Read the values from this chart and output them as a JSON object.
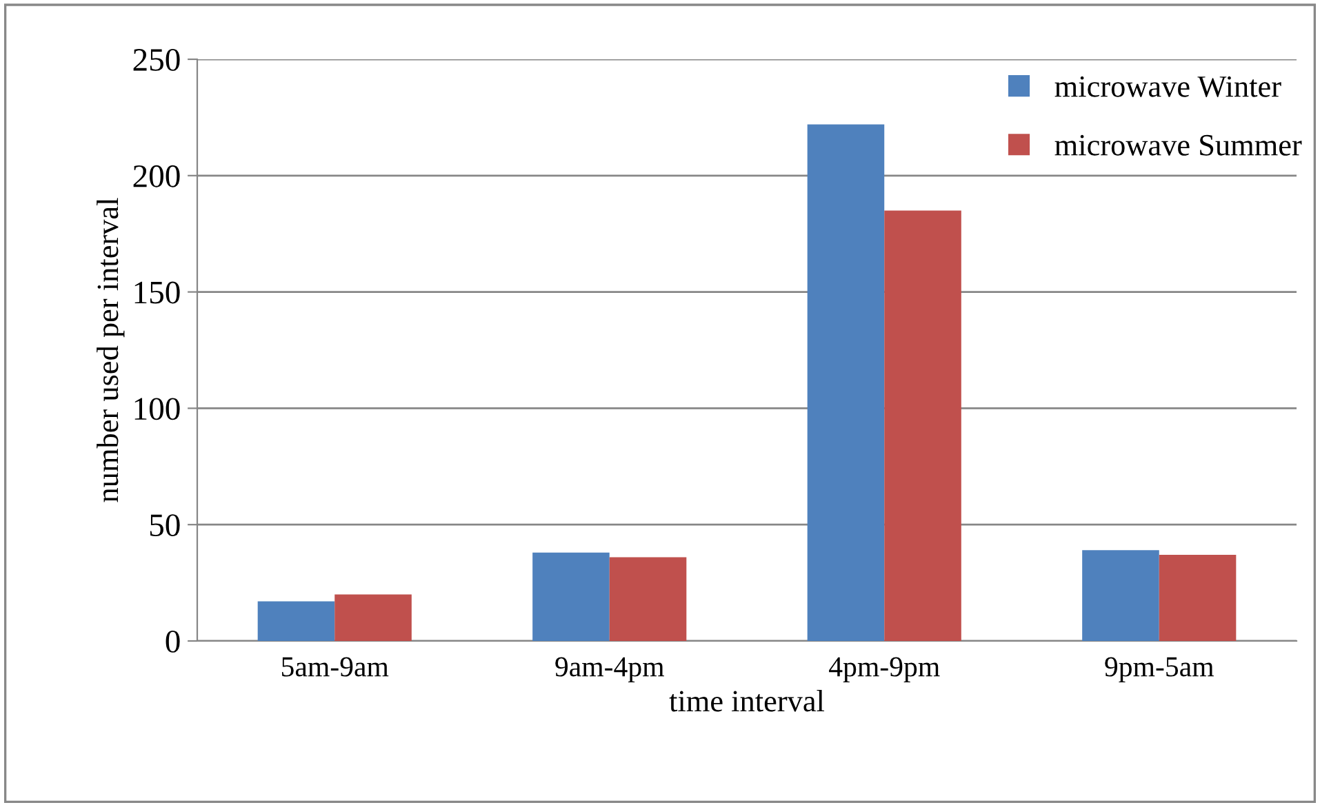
{
  "chart_data": {
    "type": "bar",
    "xlabel": "time interval",
    "ylabel": "number used per interval",
    "categories": [
      "5am-9am",
      "9am-4pm",
      "4pm-9pm",
      "9pm-5am"
    ],
    "series": [
      {
        "name": "microwave Winter",
        "color": "#4f81bd",
        "values": [
          17,
          38,
          222,
          39
        ]
      },
      {
        "name": "microwave Summer",
        "color": "#c0504d",
        "values": [
          20,
          36,
          185,
          37
        ]
      }
    ],
    "ylim": [
      0,
      250
    ],
    "yticks": [
      0,
      50,
      100,
      150,
      200,
      250
    ],
    "grid": "y",
    "legend": "top right"
  }
}
